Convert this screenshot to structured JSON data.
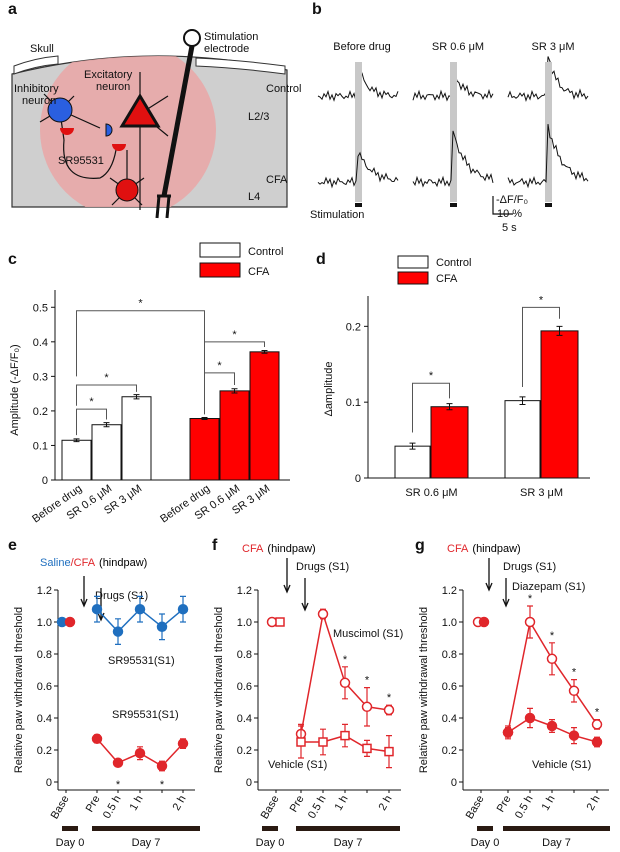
{
  "panel_labels": [
    "a",
    "b",
    "c",
    "d",
    "e",
    "f",
    "g"
  ],
  "diagram": {
    "skull": "Skull",
    "inhibitory_neuron": [
      "Inhibitory",
      "neuron"
    ],
    "excitatory_neuron": [
      "Excitatory",
      "neuron"
    ],
    "electrode": [
      "Stimulation",
      "electrode"
    ],
    "layer_23": "L2/3",
    "drug": "SR95531",
    "layer_4": "L4"
  },
  "traces": {
    "columns": [
      "Before drug",
      "SR 0.6 μM",
      "SR 3 μM"
    ],
    "rows": [
      "Control",
      "CFA"
    ],
    "stimulation": "Stimulation",
    "scale_y_label": "-ΔF/F₀",
    "scale_y": "10 %",
    "scale_x": "5 s"
  },
  "chart_data": [
    {
      "type": "bar",
      "y_label": "Amplitude (-ΔF/F₀)",
      "categories": [
        "Before drug",
        "SR 0.6 μM",
        "SR 3 μM"
      ],
      "series": [
        {
          "name": "Control",
          "color": "#ffffff",
          "values": [
            0.115,
            0.16,
            0.241
          ],
          "errors": [
            0.004,
            0.006,
            0.006
          ]
        },
        {
          "name": "CFA",
          "color": "#ff0000",
          "values": [
            0.178,
            0.258,
            0.371
          ],
          "errors": [
            0.003,
            0.006,
            0.004
          ]
        }
      ],
      "ylim": [
        0,
        0.55
      ],
      "yticks": [
        0,
        0.1,
        0.2,
        0.3,
        0.4,
        0.5
      ],
      "significance": [
        "*",
        "*",
        "*",
        "*",
        "*"
      ],
      "legend": "top-right"
    },
    {
      "type": "bar",
      "y_label": "Δamplitude",
      "categories": [
        "SR 0.6 μM",
        "SR 3 μM"
      ],
      "series": [
        {
          "name": "Control",
          "color": "#ffffff",
          "values": [
            0.042,
            0.102
          ],
          "errors": [
            0.004,
            0.005
          ]
        },
        {
          "name": "CFA",
          "color": "#ff0000",
          "values": [
            0.094,
            0.194
          ],
          "errors": [
            0.004,
            0.006
          ]
        }
      ],
      "ylim": [
        0,
        0.24
      ],
      "yticks": [
        0,
        0.1,
        0.2
      ],
      "significance": [
        "*",
        "*"
      ],
      "legend": "top-left"
    },
    {
      "type": "line",
      "title_parts": [
        {
          "text": "Saline",
          "color": "#1f6fbf"
        },
        {
          "text": "/CFA",
          "color": "#e0262b"
        },
        {
          "text": "(hindpaw)",
          "color": "#000000"
        }
      ],
      "drug_label": "Drugs (S1)",
      "y_label": "Relative paw withdrawal threshold",
      "categories": [
        "Base",
        "Pre",
        "0.5 h",
        "1 h",
        null,
        "2 h"
      ],
      "series": [
        {
          "name": "SR95531(S1)",
          "color": "#1f6fbf",
          "marker": "circle",
          "filled": true,
          "values": [
            1.0,
            1.08,
            0.94,
            1.08,
            0.97,
            1.08
          ],
          "errors": [
            0,
            0.08,
            0.08,
            0.08,
            0.08,
            0.08
          ]
        },
        {
          "name": "SR95531(S1)",
          "color": "#e0262b",
          "marker": "circle",
          "filled": true,
          "values": [
            1.0,
            0.27,
            0.12,
            0.18,
            0.1,
            0.24
          ],
          "errors": [
            0,
            0.025,
            0.02,
            0.04,
            0.03,
            0.03
          ]
        }
      ],
      "ylim": [
        -0.05,
        1.2
      ],
      "yticks": [
        0,
        0.2,
        0.4,
        0.6,
        0.8,
        {
          "value": 1,
          "label": "1.0"
        },
        1.2
      ],
      "significance": [
        {
          "text": "*",
          "at": 2
        },
        {
          "text": "*",
          "at": 4
        }
      ],
      "day_labels": [
        "Day 0",
        "Day 7"
      ]
    },
    {
      "type": "line",
      "title_parts": [
        {
          "text": "CFA",
          "color": "#e0262b"
        },
        {
          "text": "(hindpaw)",
          "color": "#000000"
        }
      ],
      "drug_label": "Drugs (S1)",
      "y_label": "Relative paw withdrawal threshold",
      "categories": [
        "Base",
        "Pre",
        "0.5 h",
        "1 h",
        null,
        "2 h"
      ],
      "series": [
        {
          "name": "Muscimol (S1)",
          "color": "#e0262b",
          "marker": "circle",
          "filled": false,
          "values": [
            1.0,
            0.3,
            1.05,
            0.62,
            0.47,
            0.45
          ],
          "errors": [
            0,
            0.06,
            0.03,
            0.1,
            0.12,
            0.03
          ]
        },
        {
          "name": "Vehicle (S1)",
          "color": "#e0262b",
          "marker": "square",
          "filled": false,
          "values": [
            1.0,
            0.25,
            0.25,
            0.29,
            0.21,
            0.19
          ],
          "errors": [
            0,
            0.1,
            0.08,
            0.07,
            0.05,
            0.1
          ]
        }
      ],
      "ylim": [
        -0.05,
        1.2
      ],
      "yticks": [
        0,
        0.2,
        0.4,
        0.6,
        0.8,
        {
          "value": 1,
          "label": "1.0"
        },
        1.2
      ],
      "significance": [
        {
          "text": "*",
          "at": 3
        },
        {
          "text": "*",
          "at": 4
        },
        {
          "text": "*",
          "at": 5
        }
      ],
      "day_labels": [
        "Day 0",
        "Day 7"
      ]
    },
    {
      "type": "line",
      "title_parts": [
        {
          "text": "CFA",
          "color": "#e0262b"
        },
        {
          "text": "(hindpaw)",
          "color": "#000000"
        }
      ],
      "drug_label": "Drugs (S1)",
      "y_label": "Relative paw withdrawal threshold",
      "categories": [
        "Base",
        "Pre",
        "0.5 h",
        "1 h",
        null,
        "2 h"
      ],
      "series": [
        {
          "name": "Diazepam (S1)",
          "color": "#e0262b",
          "marker": "circle",
          "filled": false,
          "values": [
            1.0,
            0.31,
            1.0,
            0.77,
            0.57,
            0.36
          ],
          "errors": [
            0,
            0.04,
            0.1,
            0.1,
            0.07,
            0.03
          ]
        },
        {
          "name": "Vehicle (S1)",
          "color": "#e0262b",
          "marker": "circle",
          "filled": true,
          "values": [
            1.0,
            0.31,
            0.4,
            0.35,
            0.29,
            0.25
          ],
          "errors": [
            0,
            0.03,
            0.06,
            0.04,
            0.05,
            0.03
          ]
        }
      ],
      "ylim": [
        -0.05,
        1.2
      ],
      "yticks": [
        0,
        0.2,
        0.4,
        0.6,
        0.8,
        {
          "value": 1,
          "label": "1.0"
        },
        1.2
      ],
      "significance": [
        {
          "text": "*",
          "at": 2
        },
        {
          "text": "*",
          "at": 3
        },
        {
          "text": "*",
          "at": 4
        },
        {
          "text": "*",
          "at": 5
        }
      ],
      "day_labels": [
        "Day 0",
        "Day 7"
      ]
    }
  ]
}
